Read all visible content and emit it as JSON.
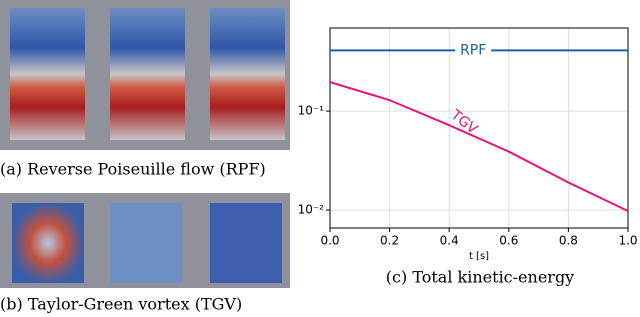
{
  "captions": {
    "a": "(a)  Reverse Poiseuille flow (RPF)",
    "b": "(b)  Taylor-Green vortex (TGV)",
    "c": "(c)  Total kinetic-energy"
  },
  "chart_data": {
    "type": "line",
    "xlabel": "t [s]",
    "log_y": true,
    "grid": true,
    "x": [
      0,
      0.2,
      0.4,
      0.6,
      0.8,
      1
    ],
    "series": [
      {
        "name": "RPF",
        "color": "#1f5fa8",
        "values": [
          0.41,
          0.41,
          0.41,
          0.41,
          0.41,
          0.41
        ]
      },
      {
        "name": "TGV",
        "color": "#e8137a",
        "values": [
          0.196,
          0.129,
          0.072,
          0.039,
          0.019,
          0.0098
        ]
      }
    ],
    "xlim": [
      0,
      1
    ],
    "xticks": [
      {
        "value": 0,
        "label": "0.0"
      },
      0.2,
      0.4,
      0.6,
      0.8,
      {
        "value": 1,
        "label": "1.0"
      }
    ],
    "ylim": [
      0.0066,
      0.69
    ],
    "yticks": [
      {
        "value": 0.01,
        "label": "10⁻²"
      },
      {
        "value": 0.1,
        "label": "10⁻¹"
      }
    ]
  }
}
